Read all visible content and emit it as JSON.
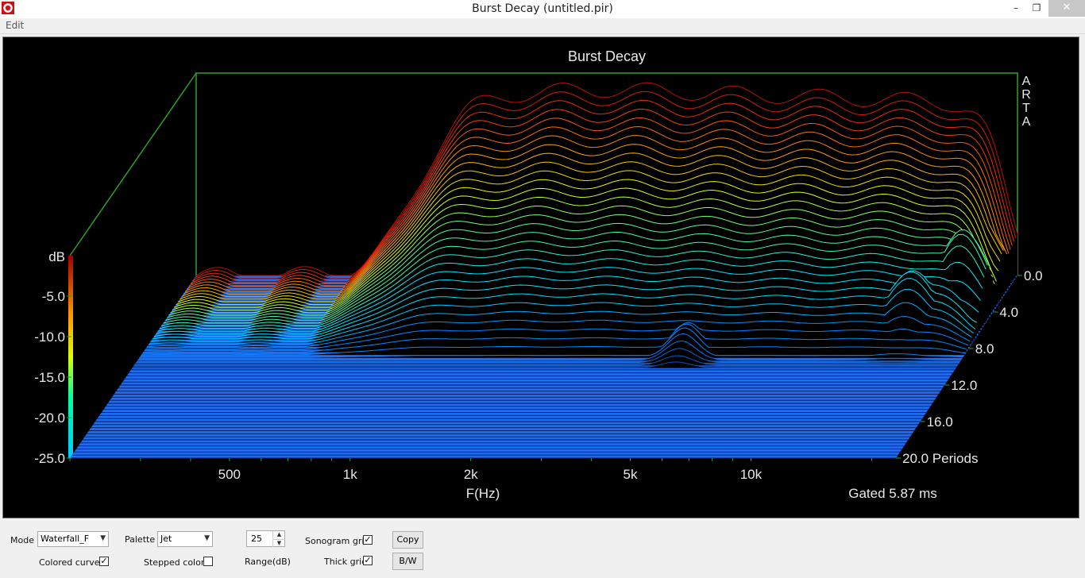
{
  "window": {
    "title": "Burst Decay  (untitled.pir)",
    "minimize": "–",
    "maximize": "❐",
    "close": "✕"
  },
  "menu": {
    "edit": "Edit"
  },
  "chart_data": {
    "type": "waterfall",
    "title": "Burst Decay",
    "watermark": "ARTA",
    "xlabel": "F(Hz)",
    "x_ticks": [
      "500",
      "1k",
      "2k",
      "5k",
      "10k"
    ],
    "x_scale": "log",
    "ylabel": "dB",
    "y_ticks": [
      "-5.0",
      "-10.0",
      "-15.0",
      "-20.0",
      "-25.0"
    ],
    "ylim": [
      -25,
      0
    ],
    "z_ticks": [
      "0.0",
      "4.0",
      "8.0",
      "12.0",
      "16.0",
      "20.0 Periods"
    ],
    "zlim": [
      0,
      20
    ],
    "gated_label": "Gated 5.87 ms",
    "palette": "Jet",
    "grid": true
  },
  "controls": {
    "mode_label": "Mode",
    "mode_value": "Waterfall_F",
    "palette_label": "Palette",
    "palette_value": "Jet",
    "range_value": "25",
    "range_label": "Range(dB)",
    "sonogram_grid_label": "Sonogram grid",
    "sonogram_grid": true,
    "thick_grid_label": "Thick grid",
    "thick_grid": true,
    "colored_curves_label": "Colored curves",
    "colored_curves": true,
    "stepped_colors_label": "Stepped colors",
    "stepped_colors": false,
    "copy_button": "Copy",
    "bw_button": "B/W"
  }
}
